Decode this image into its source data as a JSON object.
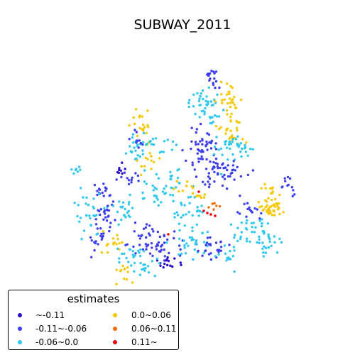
{
  "title": "SUBWAY_2011",
  "legend": {
    "title": "estimates",
    "items": [
      {
        "label": "~-0.11",
        "color": "#2a0cc9"
      },
      {
        "label": "-0.11~-0.06",
        "color": "#3d3df0"
      },
      {
        "label": "-0.06~0.0",
        "color": "#2fc8f0"
      },
      {
        "label": "0.0~0.06",
        "color": "#f5c800"
      },
      {
        "label": "0.06~0.11",
        "color": "#f26a00"
      },
      {
        "label": "0.11~",
        "color": "#e8000b"
      }
    ]
  },
  "chart_data": {
    "type": "scatter",
    "map_type": "point map",
    "axes_visible": false,
    "grid": false,
    "legend_placement": "bottom-left",
    "category_count_order": [
      "-0.06~0.0",
      "-0.11~-0.06",
      "0.0~0.06",
      "~-0.11",
      "0.06~0.11",
      "0.11~"
    ]
  }
}
